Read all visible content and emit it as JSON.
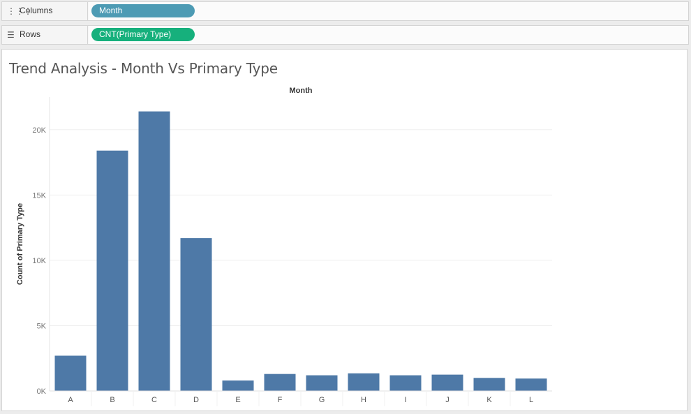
{
  "shelves": {
    "columns": {
      "label": "Columns",
      "icon": "columns-icon",
      "pill": "Month",
      "pill_color": "#4d9bb4"
    },
    "rows": {
      "label": "Rows",
      "icon": "rows-icon",
      "pill": "CNT(Primary Type)",
      "pill_color": "#16b07c"
    }
  },
  "chart_data": {
    "type": "bar",
    "title": "Trend Analysis - Month Vs Primary Type",
    "header": "Month",
    "ylabel": "Count of Primary Type",
    "categories": [
      "A",
      "B",
      "C",
      "D",
      "E",
      "F",
      "G",
      "H",
      "I",
      "J",
      "K",
      "L"
    ],
    "values": [
      2700,
      18400,
      21400,
      11700,
      800,
      1300,
      1200,
      1350,
      1200,
      1250,
      1000,
      950
    ],
    "ylim": [
      0,
      22500
    ],
    "yticks": [
      0,
      5000,
      10000,
      15000,
      20000
    ],
    "ytick_labels": [
      "0K",
      "5K",
      "10K",
      "15K",
      "20K"
    ],
    "bar_color": "#4e79a7",
    "grid": true
  }
}
